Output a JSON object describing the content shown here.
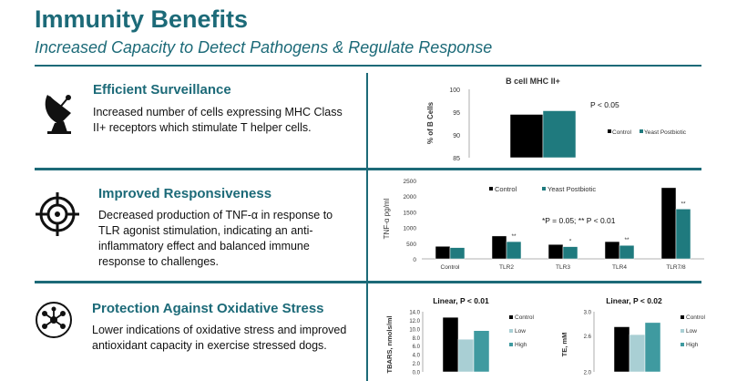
{
  "header": {
    "title": "Immunity Benefits",
    "subtitle": "Increased Capacity to Detect Pathogens & Regulate Response"
  },
  "sections": [
    {
      "title": "Efficient Surveillance",
      "body": "Increased number of cells expressing MHC Class II+ receptors which  stimulate T helper cells.",
      "icon": "satellite-dish-icon"
    },
    {
      "title": "Improved Responsiveness",
      "body": "Decreased production of TNF-α in response to TLR agonist stimulation, indicating an anti-inflammatory effect and balanced immune response to challenges.",
      "icon": "target-icon"
    },
    {
      "title": "Protection Against Oxidative Stress",
      "body": "Lower indications of oxidative stress and improved antioxidant capacity in exercise stressed dogs.",
      "icon": "molecule-icon"
    }
  ],
  "colors": {
    "brand": "#1c6a78",
    "control": "#000000",
    "yeast": "#1f7a7e",
    "low": "#a9cfd4",
    "high": "#3f9aa0"
  },
  "chart_data": [
    {
      "type": "bar",
      "title": "B cell MHC II+",
      "ylabel": "% of B Cells",
      "ylim": [
        85,
        100
      ],
      "yticks": [
        85,
        90,
        95,
        100
      ],
      "categories": [
        ""
      ],
      "series": [
        {
          "name": "Control",
          "values": [
            94.5
          ]
        },
        {
          "name": "Yeast Postbiotic",
          "values": [
            95.3
          ]
        }
      ],
      "annotations": [
        "P < 0.05"
      ],
      "legend": "right"
    },
    {
      "type": "bar",
      "ylabel": "TNF-α pg/ml",
      "ylim": [
        0,
        2500
      ],
      "yticks": [
        0,
        500,
        1000,
        1500,
        2000,
        2500
      ],
      "categories": [
        "Control",
        "TLR2",
        "TLR3",
        "TLR4",
        "TLR7/8"
      ],
      "series": [
        {
          "name": "Control",
          "values": [
            400,
            730,
            460,
            550,
            2270
          ]
        },
        {
          "name": "Yeast Postbiotic",
          "values": [
            360,
            550,
            390,
            430,
            1590
          ]
        }
      ],
      "sig_marks": [
        "",
        "**",
        "*",
        "**",
        "**"
      ],
      "annotations": [
        "*P = 0.05; ** P < 0.01"
      ],
      "legend": "top"
    },
    {
      "type": "bar",
      "title": "Linear, P < 0.01",
      "ylabel": "TBARS, nmols/ml",
      "ylim": [
        0,
        14
      ],
      "yticks": [
        0.0,
        2.0,
        4.0,
        6.0,
        8.0,
        10.0,
        12.0,
        14.0
      ],
      "categories": [
        ""
      ],
      "series": [
        {
          "name": "Control",
          "values": [
            12.7
          ]
        },
        {
          "name": "Low",
          "values": [
            7.6
          ]
        },
        {
          "name": "High",
          "values": [
            9.6
          ]
        }
      ],
      "legend": "right"
    },
    {
      "type": "bar",
      "title": "Linear, P < 0.02",
      "ylabel": "TE, mM",
      "ylim": [
        2,
        3
      ],
      "yticks": [
        2.0,
        2.6,
        3.0
      ],
      "categories": [
        ""
      ],
      "series": [
        {
          "name": "Control",
          "values": [
            2.75
          ]
        },
        {
          "name": "Low",
          "values": [
            2.62
          ]
        },
        {
          "name": "High",
          "values": [
            2.82
          ]
        }
      ],
      "legend": "right"
    }
  ]
}
